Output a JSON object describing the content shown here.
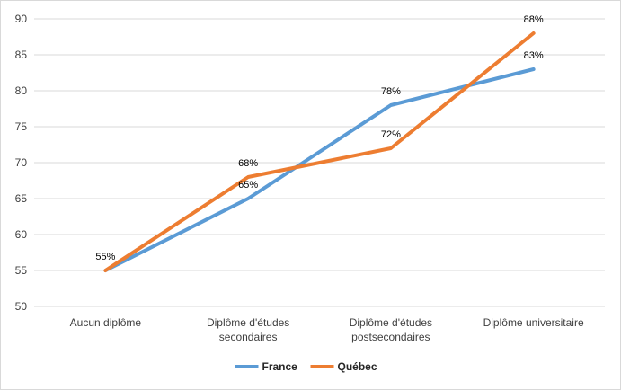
{
  "chart_data": {
    "type": "line",
    "title": "",
    "xlabel": "",
    "ylabel": "",
    "ylim": [
      50,
      90
    ],
    "yticks": [
      50,
      55,
      60,
      65,
      70,
      75,
      80,
      85,
      90
    ],
    "grid": true,
    "legend_position": "bottom",
    "categories": [
      [
        "Aucun diplôme"
      ],
      [
        "Diplôme d'études",
        "secondaires"
      ],
      [
        "Diplôme d'études",
        "postsecondaires"
      ],
      [
        "Diplôme universitaire"
      ]
    ],
    "series": [
      {
        "name": "France",
        "color": "#5b9bd5",
        "values": [
          55,
          65,
          78,
          83
        ],
        "data_labels": [
          null,
          "65%",
          "78%",
          "83%"
        ]
      },
      {
        "name": "Québec",
        "color": "#ed7d31",
        "values": [
          55,
          68,
          72,
          88
        ],
        "data_labels": [
          "55%",
          "68%",
          "72%",
          "88%"
        ]
      }
    ]
  }
}
